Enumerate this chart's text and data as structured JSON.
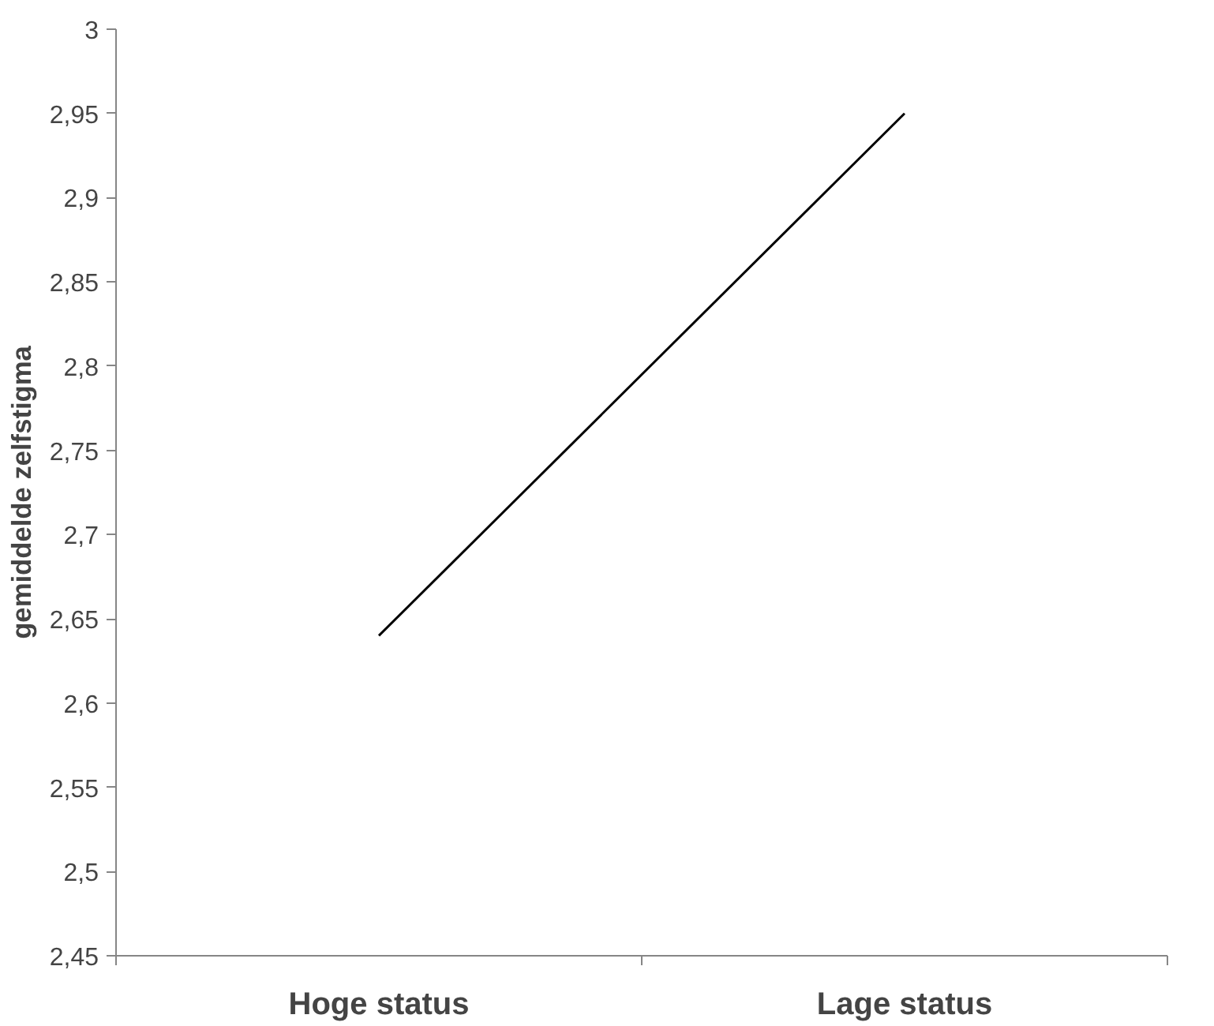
{
  "chart_data": {
    "type": "line",
    "ylabel": "gemiddelde zelfstigma",
    "categories": [
      "Hoge status",
      "Lage status"
    ],
    "series": [
      {
        "color": "#000000",
        "values": [
          2.64,
          2.95
        ]
      }
    ],
    "ylim": [
      2.45,
      3
    ],
    "yticks": [
      {
        "value": 2.45,
        "label": "2,45"
      },
      {
        "value": 2.5,
        "label": "2,5"
      },
      {
        "value": 2.55,
        "label": "2,55"
      },
      {
        "value": 2.6,
        "label": "2,6"
      },
      {
        "value": 2.65,
        "label": "2,65"
      },
      {
        "value": 2.7,
        "label": "2,7"
      },
      {
        "value": 2.75,
        "label": "2,75"
      },
      {
        "value": 2.8,
        "label": "2,8"
      },
      {
        "value": 2.85,
        "label": "2,85"
      },
      {
        "value": 2.9,
        "label": "2,9"
      },
      {
        "value": 2.95,
        "label": "2,95"
      },
      {
        "value": 3,
        "label": "3"
      }
    ],
    "grid": false,
    "marker": "none",
    "line_style": "solid"
  }
}
